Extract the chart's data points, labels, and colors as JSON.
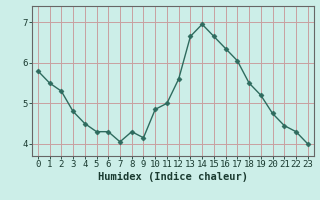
{
  "x": [
    0,
    1,
    2,
    3,
    4,
    5,
    6,
    7,
    8,
    9,
    10,
    11,
    12,
    13,
    14,
    15,
    16,
    17,
    18,
    19,
    20,
    21,
    22,
    23
  ],
  "y": [
    5.8,
    5.5,
    5.3,
    4.8,
    4.5,
    4.3,
    4.3,
    4.05,
    4.3,
    4.15,
    4.85,
    5.0,
    5.6,
    6.65,
    6.95,
    6.65,
    6.35,
    6.05,
    5.5,
    5.2,
    4.75,
    4.45,
    4.3,
    4.0
  ],
  "xlabel": "Humidex (Indice chaleur)",
  "ylim": [
    3.7,
    7.4
  ],
  "xlim": [
    -0.5,
    23.5
  ],
  "yticks": [
    4,
    5,
    6,
    7
  ],
  "xticks": [
    0,
    1,
    2,
    3,
    4,
    5,
    6,
    7,
    8,
    9,
    10,
    11,
    12,
    13,
    14,
    15,
    16,
    17,
    18,
    19,
    20,
    21,
    22,
    23
  ],
  "line_color": "#2e6b5e",
  "marker": "D",
  "marker_size": 2.5,
  "bg_color": "#cceee8",
  "grid_color_h": "#c8a0a0",
  "grid_color_v": "#c8a0a0",
  "tick_label_fontsize": 6.5,
  "xlabel_fontsize": 7.5,
  "line_width": 1.0
}
